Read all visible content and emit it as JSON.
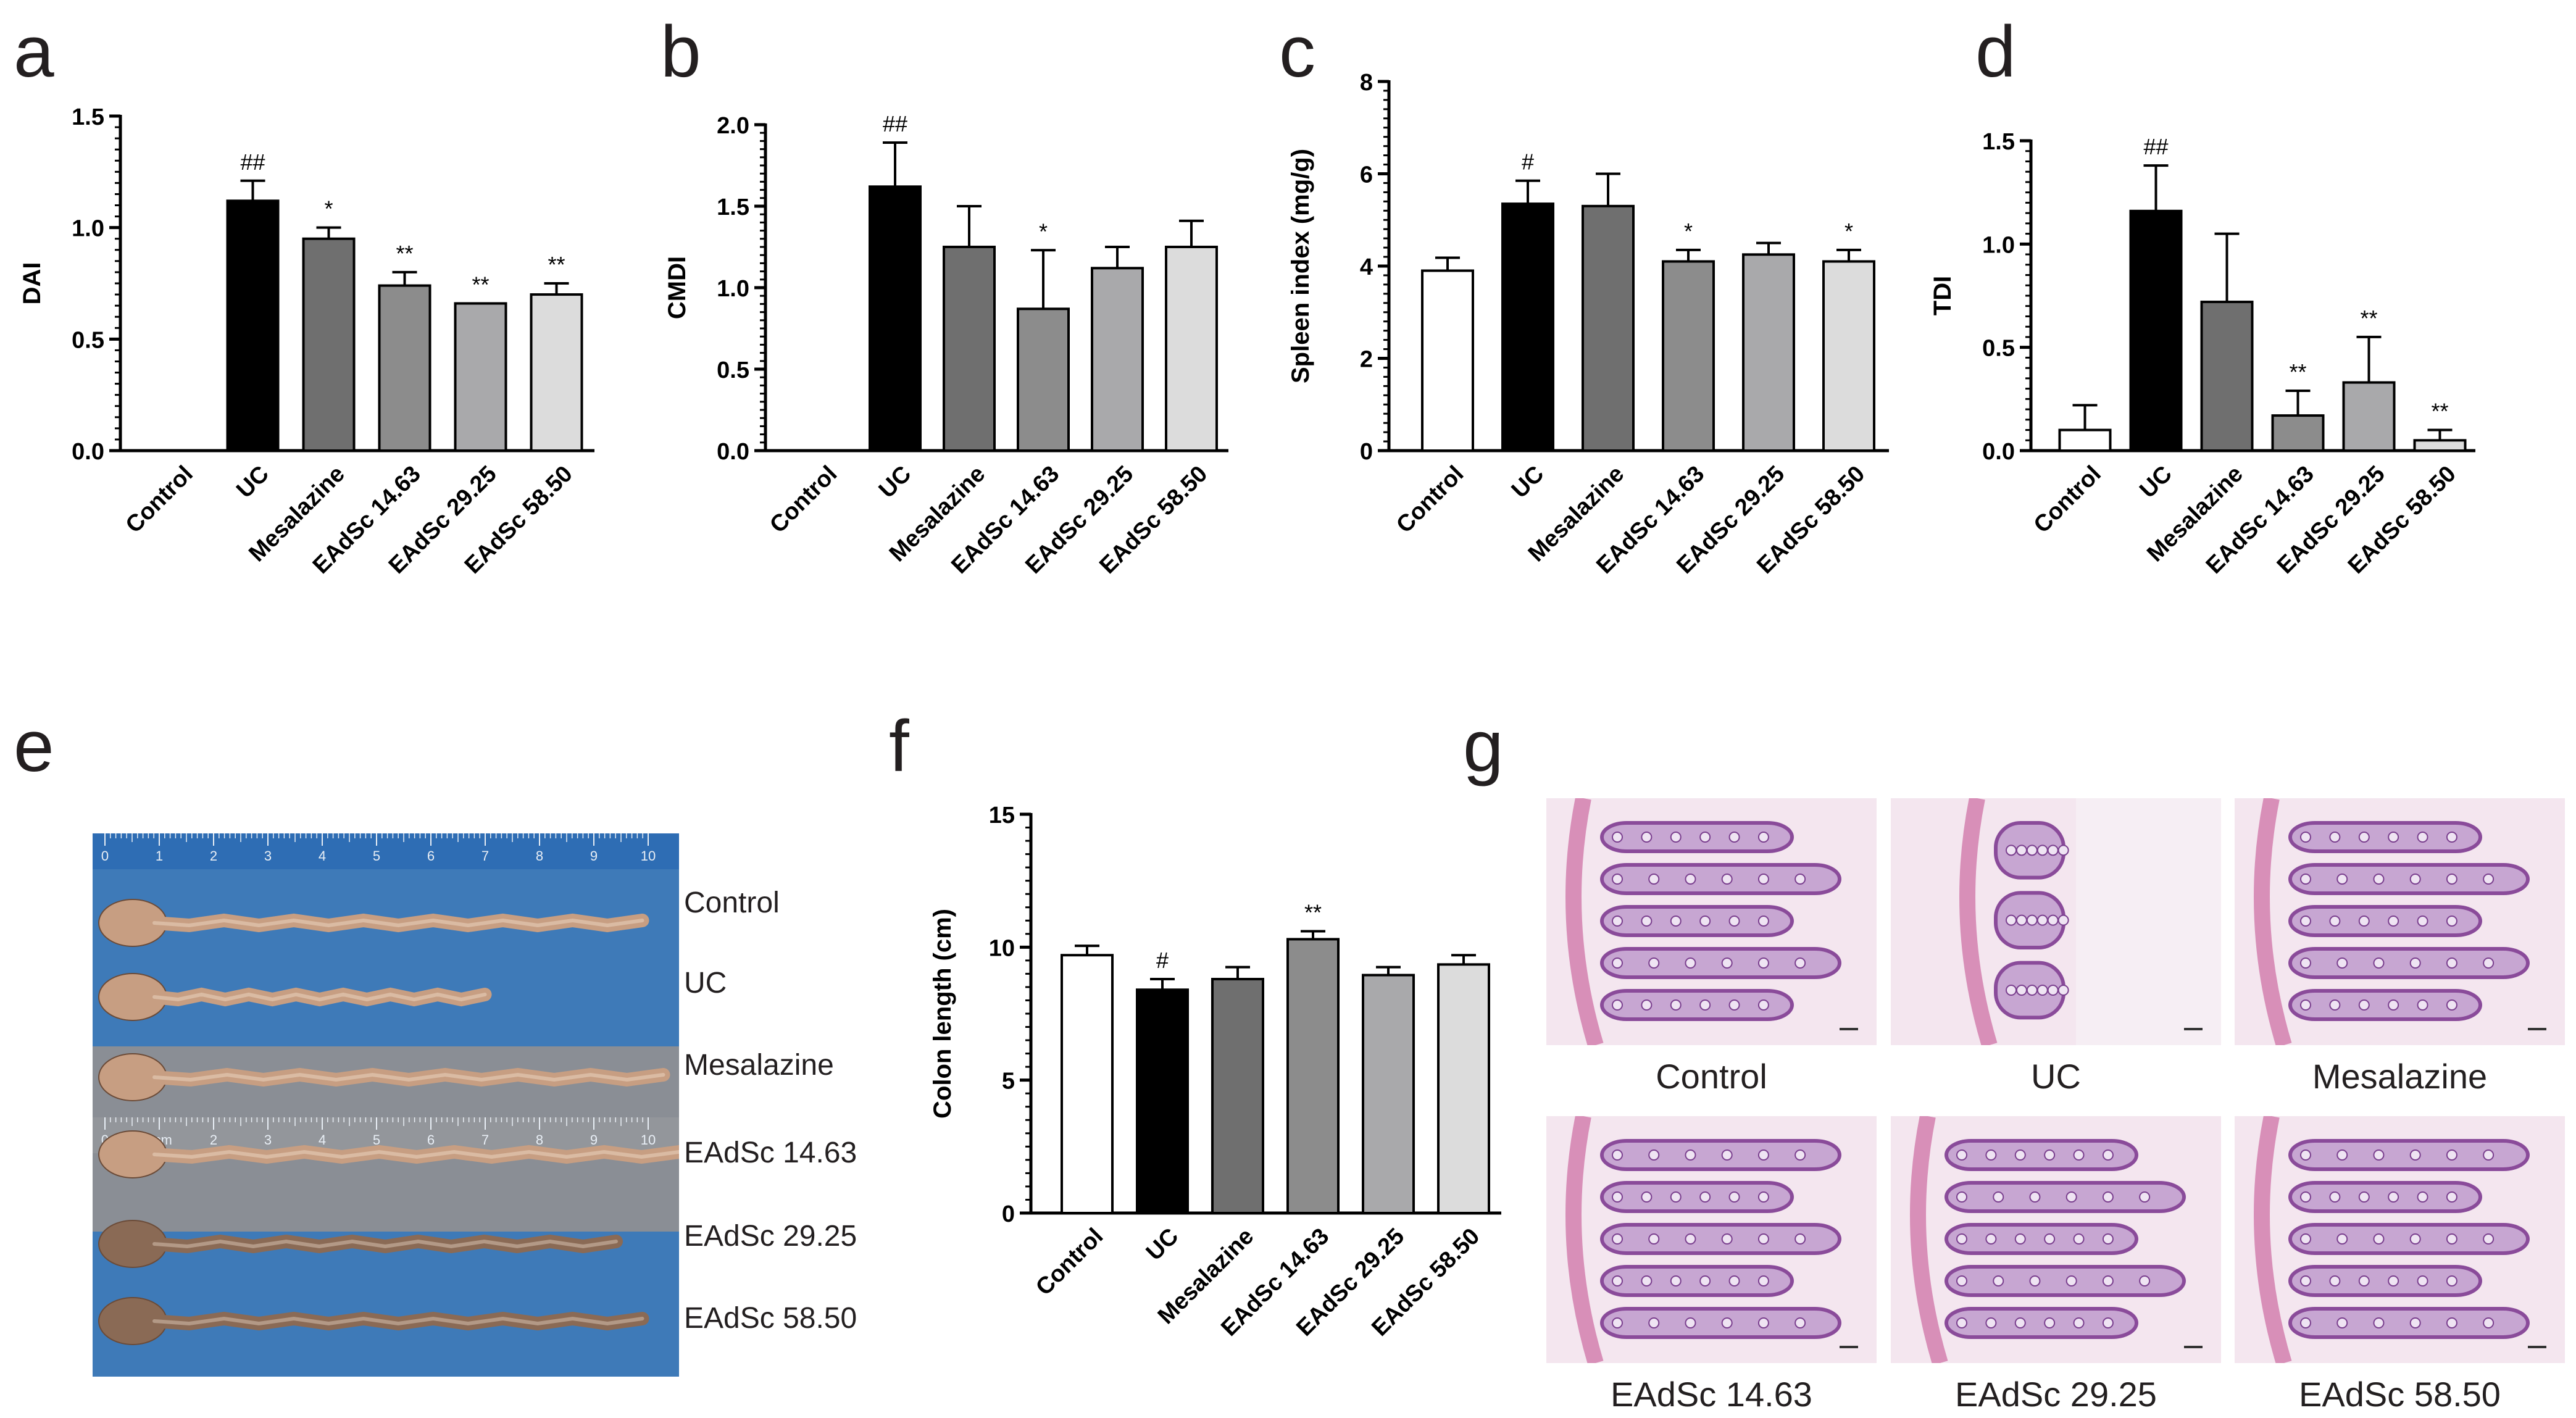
{
  "panel_letters": [
    "a",
    "b",
    "c",
    "d",
    "e",
    "f",
    "g"
  ],
  "colors": {
    "bars": [
      "#ffffff",
      "#000000",
      "#6f6f6f",
      "#8c8c8c",
      "#a9a9ab",
      "#dcdcdc"
    ],
    "axis": "#000000",
    "stain_purple": "#8a4b9a",
    "stain_pink": "#e8b8d4",
    "ruler_blue": "#2e6db4",
    "board_blue": "#3e7ab8",
    "tissue": "#c79e82"
  },
  "chart_data": [
    {
      "panel": "a",
      "type": "bar",
      "categories": [
        "Control",
        "UC",
        "Mesalazine",
        "EAdSc 14.63",
        "EAdSc 29.25",
        "EAdSc 58.50"
      ],
      "values": [
        0,
        1.12,
        0.95,
        0.74,
        0.66,
        0.7
      ],
      "errors": [
        0,
        0.09,
        0.05,
        0.06,
        0,
        0.05
      ],
      "annotations": [
        "",
        "##",
        "*",
        "**",
        "**",
        "**"
      ],
      "ylabel": "DAI",
      "ylim": [
        0,
        1.5
      ],
      "yticks": [
        "0.0",
        "0.5",
        "1.0",
        "1.5"
      ]
    },
    {
      "panel": "b",
      "type": "bar",
      "categories": [
        "Control",
        "UC",
        "Mesalazine",
        "EAdSc 14.63",
        "EAdSc 29.25",
        "EAdSc 58.50"
      ],
      "values": [
        0,
        1.62,
        1.25,
        0.87,
        1.12,
        1.25
      ],
      "errors": [
        0,
        0.27,
        0.25,
        0.36,
        0.13,
        0.16
      ],
      "annotations": [
        "",
        "##",
        "",
        "*",
        "",
        ""
      ],
      "ylabel": "CMDI",
      "ylim": [
        0,
        2.0
      ],
      "yticks": [
        "0.0",
        "0.5",
        "1.0",
        "1.5",
        "2.0"
      ]
    },
    {
      "panel": "c",
      "type": "bar",
      "categories": [
        "Control",
        "UC",
        "Mesalazine",
        "EAdSc 14.63",
        "EAdSc 29.25",
        "EAdSc 58.50"
      ],
      "values": [
        3.9,
        5.35,
        5.3,
        4.1,
        4.25,
        4.1
      ],
      "errors": [
        0.28,
        0.5,
        0.7,
        0.25,
        0.25,
        0.25
      ],
      "annotations": [
        "",
        "#",
        "",
        "*",
        "",
        "*"
      ],
      "ylabel": "Spleen index (mg/g)",
      "ylim": [
        0,
        8
      ],
      "yticks": [
        "0",
        "2",
        "4",
        "6",
        "8"
      ]
    },
    {
      "panel": "d",
      "type": "bar",
      "categories": [
        "Control",
        "UC",
        "Mesalazine",
        "EAdSc 14.63",
        "EAdSc 29.25",
        "EAdSc 58.50"
      ],
      "values": [
        0.1,
        1.16,
        0.72,
        0.17,
        0.33,
        0.05
      ],
      "errors": [
        0.12,
        0.22,
        0.33,
        0.12,
        0.22,
        0.05
      ],
      "annotations": [
        "",
        "##",
        "",
        "**",
        "**",
        "**"
      ],
      "ylabel": "TDI",
      "ylim": [
        0,
        1.5
      ],
      "yticks": [
        "0.0",
        "0.5",
        "1.0",
        "1.5"
      ]
    },
    {
      "panel": "f",
      "type": "bar",
      "categories": [
        "Control",
        "UC",
        "Mesalazine",
        "EAdSc 14.63",
        "EAdSc 29.25",
        "EAdSc 58.50"
      ],
      "values": [
        9.7,
        8.4,
        8.8,
        10.3,
        8.95,
        9.35
      ],
      "errors": [
        0.35,
        0.4,
        0.45,
        0.3,
        0.3,
        0.35
      ],
      "annotations": [
        "",
        "#",
        "",
        "**",
        "",
        ""
      ],
      "ylabel": "Colon length (cm)",
      "ylim": [
        0,
        15
      ],
      "yticks": [
        "0",
        "5",
        "10",
        "15"
      ]
    }
  ],
  "colon_photo": {
    "ruler_numbers": [
      "0",
      "1",
      "2",
      "3",
      "4",
      "5",
      "6",
      "7",
      "8",
      "9",
      "10"
    ],
    "ruler_numbers_b": [
      "0",
      "1cm",
      "2",
      "3",
      "4",
      "5",
      "6",
      "7",
      "8",
      "9",
      "10"
    ],
    "rows": [
      {
        "label": "Control",
        "length": 0.93
      },
      {
        "label": "UC",
        "length": 0.63
      },
      {
        "label": "Mesalazine",
        "length": 0.97
      },
      {
        "label": "EAdSc 14.63",
        "length": 1.0
      },
      {
        "label": "EAdSc 29.25",
        "length": 0.88
      },
      {
        "label": "EAdSc 58.50",
        "length": 0.93
      }
    ]
  },
  "histology": {
    "labels": [
      "Control",
      "UC",
      "Mesalazine",
      "EAdSc 14.63",
      "EAdSc 29.25",
      "EAdSc 58.50"
    ]
  }
}
